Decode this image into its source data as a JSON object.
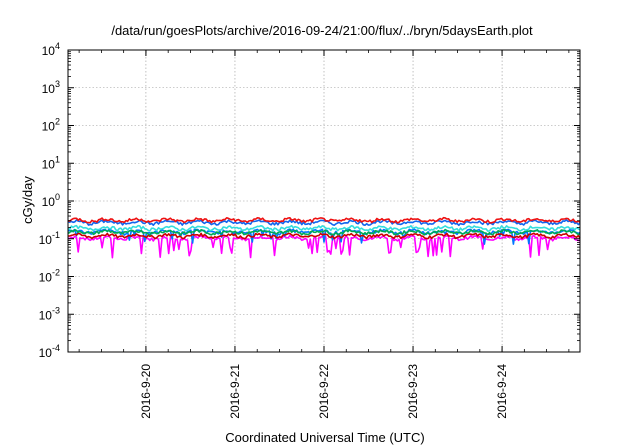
{
  "chart_data": {
    "type": "line",
    "title": "/data/run/goesPlots/archive/2016-09-24/21:00/flux/../bryn/5daysEarth.plot",
    "xlabel": "Coordinated Universal Time (UTC)",
    "ylabel": "cGy/day",
    "y_scale": "log",
    "ylim": [
      0.0001,
      10000
    ],
    "y_ticks": [
      {
        "value": 0.0001,
        "base": "10",
        "exp": "-4"
      },
      {
        "value": 0.001,
        "base": "10",
        "exp": "-3"
      },
      {
        "value": 0.01,
        "base": "10",
        "exp": "-2"
      },
      {
        "value": 0.1,
        "base": "10",
        "exp": "-1"
      },
      {
        "value": 1,
        "base": "10",
        "exp": "0"
      },
      {
        "value": 10,
        "base": "10",
        "exp": "1"
      },
      {
        "value": 100,
        "base": "10",
        "exp": "2"
      },
      {
        "value": 1000,
        "base": "10",
        "exp": "3"
      },
      {
        "value": 10000,
        "base": "10",
        "exp": "4"
      }
    ],
    "xlim": [
      "2016-09-19 03:00",
      "2016-09-24 21:00"
    ],
    "x_ticks": [
      "2016-9-20",
      "2016-9-21",
      "2016-9-22",
      "2016-9-23",
      "2016-9-24"
    ],
    "grid": true,
    "series": [
      {
        "color": "#ff00ff",
        "base": 0.105,
        "spike_depth": 0.03,
        "style": "dips"
      },
      {
        "color": "#0077ff",
        "base": 0.155,
        "spike_depth": 0.07,
        "style": "dips"
      },
      {
        "color": "#cc0000",
        "base": 0.12,
        "style": "flat"
      },
      {
        "color": "#00aa55",
        "base": 0.15,
        "style": "flat"
      },
      {
        "color": "#33dddd",
        "base": 0.19,
        "style": "flat"
      },
      {
        "color": "#1166ee",
        "base": 0.27,
        "style": "flat"
      },
      {
        "color": "#ee1111",
        "base": 0.31,
        "style": "flat"
      }
    ]
  }
}
